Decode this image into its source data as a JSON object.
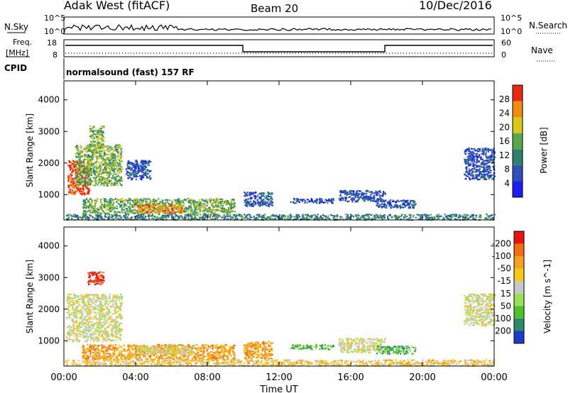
{
  "header": {
    "station": "Adak West (fitACF)",
    "beam": "Beam 20",
    "date": "10/Dec/2016"
  },
  "top_panels": {
    "nsky_label": "N.Sky",
    "nsky_ticks": [
      "10^5",
      "10^0"
    ],
    "nsearch_label": "N.Search",
    "nsearch_ticks": [
      "10^5",
      "10^0"
    ],
    "freq_label_1": "Freq.",
    "freq_label_2": "[MHz]",
    "freq_ticks": [
      "18",
      "8"
    ],
    "nave_label": "Nave",
    "nave_ticks": [
      "60",
      "0"
    ],
    "cpid_label": "CPID",
    "cpid_text": "normalsound (fast) 157 RF"
  },
  "chart_data": [
    {
      "type": "heatmap",
      "name": "power",
      "ylabel": "Slant Range [km]",
      "yticks": [
        "1000",
        "2000",
        "3000",
        "4000"
      ],
      "ylim": [
        200,
        4600
      ],
      "colorbar_label": "Power [dB]",
      "colorbar_ticks": [
        "4",
        "8",
        "12",
        "16",
        "20",
        "24",
        "28"
      ],
      "colorbar_colors": [
        "#1e1ef0",
        "#2f4fb8",
        "#2f8070",
        "#5aa64a",
        "#d8c81a",
        "#f08a10",
        "#e82a14"
      ],
      "regions": [
        {
          "t0": 0.2,
          "t1": 1.4,
          "r0": 1000,
          "r1": 2100,
          "level": 6
        },
        {
          "t0": 0.6,
          "t1": 3.2,
          "r0": 1300,
          "r1": 2600,
          "level": 3
        },
        {
          "t0": 1.4,
          "t1": 2.2,
          "r0": 2500,
          "r1": 3200,
          "level": 3
        },
        {
          "t0": 3.4,
          "t1": 4.8,
          "r0": 1500,
          "r1": 2100,
          "level": 1
        },
        {
          "t0": 1.0,
          "t1": 9.5,
          "r0": 420,
          "r1": 900,
          "level": 3
        },
        {
          "t0": 4.0,
          "t1": 6.6,
          "r0": 420,
          "r1": 700,
          "level": 5
        },
        {
          "t0": 10.0,
          "t1": 11.6,
          "r0": 650,
          "r1": 1100,
          "level": 1
        },
        {
          "t0": 12.6,
          "t1": 15.0,
          "r0": 750,
          "r1": 900,
          "level": 1
        },
        {
          "t0": 15.3,
          "t1": 17.9,
          "r0": 800,
          "r1": 1150,
          "level": 1
        },
        {
          "t0": 17.4,
          "t1": 19.6,
          "r0": 600,
          "r1": 850,
          "level": 1
        },
        {
          "t0": 22.3,
          "t1": 24.0,
          "r0": 1500,
          "r1": 2500,
          "level": 1
        },
        {
          "t0": 0.0,
          "t1": 24.0,
          "r0": 220,
          "r1": 400,
          "level": 2
        }
      ]
    },
    {
      "type": "heatmap",
      "name": "velocity",
      "ylabel": "Slant Range [km]",
      "yticks": [
        "1000",
        "2000",
        "3000",
        "4000"
      ],
      "ylim": [
        200,
        4600
      ],
      "colorbar_label": "Velocity [m s^-1]",
      "colorbar_ticks": [
        "200",
        "100",
        "50",
        "15",
        "-15",
        "-50",
        "-100",
        "-200"
      ],
      "colorbar_colors": [
        "#1e3cc8",
        "#2c8a6a",
        "#4fc030",
        "#9ae05a",
        "#c8c8c8",
        "#f5c81a",
        "#f5a020",
        "#f06e14",
        "#e81414"
      ],
      "regions": [
        {
          "t0": 0.1,
          "t1": 3.2,
          "r0": 1000,
          "r1": 2500,
          "level": 4
        },
        {
          "t0": 1.3,
          "t1": 2.2,
          "r0": 2800,
          "r1": 3200,
          "level": 8
        },
        {
          "t0": 1.0,
          "t1": 9.5,
          "r0": 420,
          "r1": 900,
          "level": 6
        },
        {
          "t0": 4.0,
          "t1": 7.2,
          "r0": 600,
          "r1": 850,
          "level": 4
        },
        {
          "t0": 10.0,
          "t1": 11.6,
          "r0": 450,
          "r1": 1000,
          "level": 6
        },
        {
          "t0": 12.6,
          "t1": 15.0,
          "r0": 750,
          "r1": 900,
          "level": 2
        },
        {
          "t0": 15.3,
          "t1": 17.9,
          "r0": 650,
          "r1": 1100,
          "level": 4
        },
        {
          "t0": 17.4,
          "t1": 19.6,
          "r0": 600,
          "r1": 850,
          "level": 2
        },
        {
          "t0": 22.3,
          "t1": 24.0,
          "r0": 1500,
          "r1": 2500,
          "level": 4
        },
        {
          "t0": 0.0,
          "t1": 24.0,
          "r0": 220,
          "r1": 420,
          "level": 5
        }
      ]
    }
  ],
  "time_axis": {
    "ticks": [
      "00:00",
      "04:00",
      "08:00",
      "12:00",
      "16:00",
      "20:00",
      "00:00"
    ],
    "xlim": [
      0,
      24
    ],
    "xlabel": "Time UT"
  }
}
